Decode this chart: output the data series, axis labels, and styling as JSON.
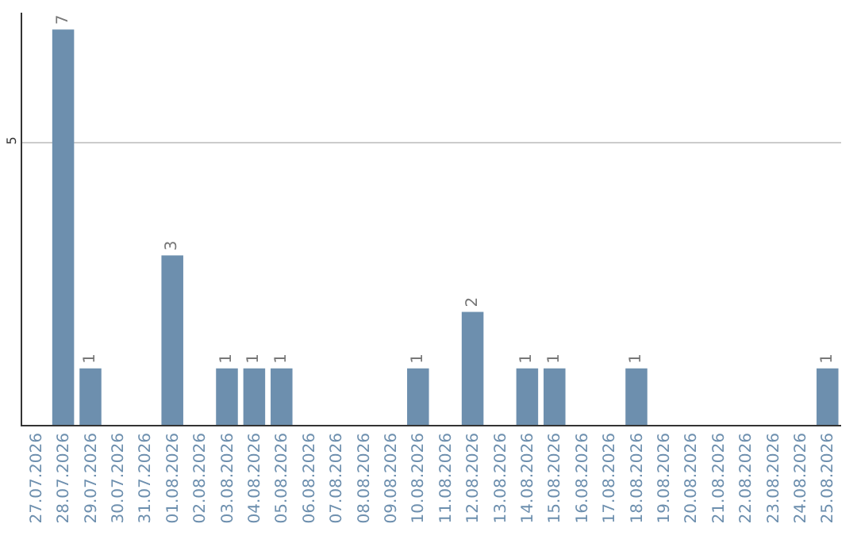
{
  "chart_data": {
    "type": "bar",
    "categories": [
      "27.07.2026",
      "28.07.2026",
      "29.07.2026",
      "30.07.2026",
      "31.07.2026",
      "01.08.2026",
      "02.08.2026",
      "03.08.2026",
      "04.08.2026",
      "05.08.2026",
      "06.08.2026",
      "07.08.2026",
      "08.08.2026",
      "09.08.2026",
      "10.08.2026",
      "11.08.2026",
      "12.08.2026",
      "13.08.2026",
      "14.08.2026",
      "15.08.2026",
      "16.08.2026",
      "17.08.2026",
      "18.08.2026",
      "19.08.2026",
      "20.08.2026",
      "21.08.2026",
      "22.08.2026",
      "23.08.2026",
      "24.08.2026",
      "25.08.2026"
    ],
    "values": [
      0,
      7,
      1,
      0,
      0,
      3,
      0,
      1,
      1,
      1,
      0,
      0,
      0,
      0,
      1,
      0,
      2,
      0,
      1,
      1,
      0,
      0,
      1,
      0,
      0,
      0,
      0,
      0,
      0,
      1
    ],
    "value_labels": [
      null,
      "7",
      "1",
      null,
      null,
      "3",
      null,
      "1",
      "1",
      "1",
      null,
      null,
      null,
      null,
      "1",
      null,
      "2",
      null,
      "1",
      "1",
      null,
      null,
      "1",
      null,
      null,
      null,
      null,
      null,
      null,
      "1"
    ],
    "color": "#6d8fae",
    "ylim": [
      0,
      7.3
    ],
    "yticks": [
      5
    ],
    "grid": "y",
    "legend": false
  }
}
